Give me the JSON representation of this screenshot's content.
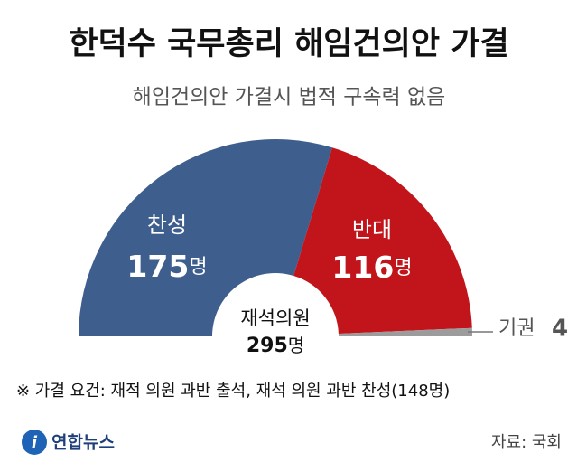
{
  "chart_data": {
    "type": "semi-donut",
    "title": "한덕수 국무총리 해임건의안 가결",
    "subtitle": "해임건의안 가결시 법적 구속력 없음",
    "categories": [
      "찬성",
      "반대",
      "기권"
    ],
    "values": [
      175,
      116,
      4
    ],
    "colors": [
      "#3e5f8e",
      "#c1141b",
      "#9c9c9c"
    ],
    "unit": "명",
    "center_label": "재석의원",
    "total": 295,
    "note": "※ 가결 요건: 재적 의원 과반 출석, 재석 의원 과반 찬성(148명)",
    "logo": "연합뉴스",
    "source": "자료: 국회"
  }
}
